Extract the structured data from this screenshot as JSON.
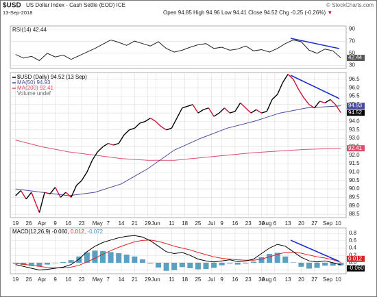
{
  "header": {
    "symbol": "$USD",
    "name": "US Dollar Index - Cash Settle (EOD) ICE",
    "date": "13-Sep-2018",
    "quote": [
      "Open 94.85",
      "High 94.96",
      "Low 94.41",
      "Close 94.52",
      "Chg -0.25 (-0.26%)",
      "▼"
    ],
    "credit": "© StockCharts.com"
  },
  "chart_data": [
    {
      "type": "line",
      "title": "RSI(14) 42.44",
      "xlim": [
        -2,
        125
      ],
      "ylim": [
        25,
        95
      ],
      "yticks": [
        30,
        50,
        70,
        90
      ],
      "grid": true,
      "series": [
        {
          "color": "#222222",
          "x": [
            0,
            3,
            6,
            9,
            12,
            15,
            18,
            21,
            24,
            27,
            30,
            33,
            36,
            39,
            42,
            45,
            48,
            51,
            54,
            57,
            60,
            63,
            66,
            69,
            72,
            75,
            78,
            81,
            84,
            87,
            90,
            93,
            96,
            99,
            102,
            105,
            108,
            111,
            114,
            117,
            120,
            123
          ],
          "values": [
            48,
            42,
            45,
            38,
            50,
            44,
            47,
            40,
            46,
            52,
            58,
            65,
            72,
            68,
            63,
            70,
            66,
            62,
            69,
            58,
            52,
            55,
            60,
            64,
            66,
            58,
            60,
            55,
            57,
            62,
            54,
            56,
            52,
            58,
            66,
            72,
            69,
            55,
            50,
            57,
            54,
            42.44
          ]
        }
      ]
    },
    {
      "type": "line",
      "xlim": [
        -2,
        125
      ],
      "ylim": [
        88.3,
        96.9
      ],
      "yticks": [
        88.5,
        {
          "value": 89,
          "label": "89.0"
        },
        89.5,
        {
          "value": 90,
          "label": "90.0"
        },
        90.5,
        {
          "value": 91,
          "label": "91.0"
        },
        91.5,
        {
          "value": 92,
          "label": "92.0"
        },
        92.5,
        {
          "value": 93,
          "label": "93.0"
        },
        93.5,
        {
          "value": 94,
          "label": "94.0"
        },
        94.5,
        {
          "value": 95,
          "label": "95.0"
        },
        95.5,
        {
          "value": 96,
          "label": "96.0"
        },
        96.5
      ],
      "xticks": [
        {
          "value": 0,
          "label": "19"
        },
        {
          "value": 5,
          "label": "26"
        },
        {
          "value": 10,
          "label": "Apr"
        },
        {
          "value": 15,
          "label": "9"
        },
        {
          "value": 20,
          "label": "16"
        },
        {
          "value": 25,
          "label": "23"
        },
        {
          "value": 31,
          "label": "May"
        },
        {
          "value": 35,
          "label": "7"
        },
        {
          "value": 40,
          "label": "14"
        },
        {
          "value": 45,
          "label": "21"
        },
        {
          "value": 50,
          "label": "29"
        },
        {
          "value": 53,
          "label": "Jun"
        },
        {
          "value": 59,
          "label": "11"
        },
        {
          "value": 64,
          "label": "18"
        },
        {
          "value": 69,
          "label": "25"
        },
        {
          "value": 74,
          "label": "Jul"
        },
        {
          "value": 78,
          "label": "9"
        },
        {
          "value": 83,
          "label": "16"
        },
        {
          "value": 88,
          "label": "23"
        },
        {
          "value": 93,
          "label": "30"
        },
        {
          "value": 95,
          "label": "Aug"
        },
        {
          "value": 98,
          "label": "6"
        },
        {
          "value": 103,
          "label": "13"
        },
        {
          "value": 108,
          "label": "20"
        },
        {
          "value": 113,
          "label": "27"
        },
        {
          "value": 118,
          "label": "Sep"
        },
        {
          "value": 122,
          "label": "10"
        }
      ],
      "grid": true,
      "extra_legend": "Volume undef",
      "series": [
        {
          "name": "$USD (Daily) 94.52 (13 Sep)",
          "color": "#000000",
          "down_color": "#cc1133",
          "x": [
            0,
            2,
            4,
            6,
            8,
            9,
            11,
            13,
            15,
            17,
            19,
            21,
            23,
            25,
            27,
            29,
            31,
            33,
            35,
            37,
            39,
            41,
            43,
            45,
            47,
            49,
            51,
            53,
            55,
            57,
            59,
            61,
            63,
            65,
            67,
            69,
            71,
            73,
            75,
            77,
            79,
            81,
            83,
            85,
            87,
            89,
            91,
            93,
            95,
            97,
            99,
            101,
            103,
            105,
            107,
            109,
            111,
            113,
            115,
            117,
            119,
            121,
            123
          ],
          "values": [
            89.6,
            89.9,
            89.4,
            89.8,
            89.0,
            88.6,
            89.8,
            89.7,
            90.1,
            89.5,
            89.8,
            89.5,
            90.2,
            90.5,
            91.0,
            91.7,
            92.2,
            92.5,
            92.7,
            92.6,
            92.7,
            93.2,
            93.5,
            93.6,
            93.9,
            94.0,
            94.2,
            94.0,
            93.7,
            93.5,
            93.6,
            94.2,
            94.8,
            94.9,
            95.0,
            94.5,
            94.7,
            94.8,
            94.3,
            94.5,
            94.8,
            94.5,
            94.6,
            95.1,
            94.8,
            94.5,
            94.7,
            94.5,
            94.6,
            95.3,
            95.6,
            96.3,
            96.8,
            96.5,
            95.9,
            95.4,
            95.0,
            94.8,
            95.2,
            95.1,
            95.3,
            95.0,
            94.52
          ]
        },
        {
          "name": "MA(50) 94.93",
          "color": "#4a4a9a",
          "x": [
            0,
            10,
            20,
            30,
            40,
            50,
            60,
            70,
            80,
            90,
            100,
            110,
            123
          ],
          "values": [
            90.0,
            89.8,
            89.6,
            89.8,
            90.3,
            91.2,
            92.3,
            93.0,
            93.6,
            94.0,
            94.5,
            94.8,
            94.93
          ]
        },
        {
          "name": "MA(200) 92.41",
          "color": "#d9506a",
          "x": [
            0,
            10,
            20,
            30,
            40,
            50,
            60,
            70,
            80,
            90,
            100,
            110,
            123
          ],
          "values": [
            92.9,
            92.5,
            92.2,
            92.0,
            91.8,
            91.7,
            91.7,
            91.85,
            92.0,
            92.15,
            92.25,
            92.35,
            92.41
          ]
        }
      ]
    },
    {
      "type": "line",
      "xlim": [
        -2,
        125
      ],
      "ylim": [
        -0.3,
        0.95
      ],
      "yticks": [
        0.8,
        0.6,
        0.4,
        0.2,
        {
          "value": 0,
          "label": "0.0"
        },
        -0.2
      ],
      "xticks": [
        {
          "value": 0,
          "label": "19"
        },
        {
          "value": 5,
          "label": "26"
        },
        {
          "value": 10,
          "label": "Apr"
        },
        {
          "value": 15,
          "label": "9"
        },
        {
          "value": 20,
          "label": "16"
        },
        {
          "value": 25,
          "label": "23"
        },
        {
          "value": 31,
          "label": "May"
        },
        {
          "value": 35,
          "label": "7"
        },
        {
          "value": 40,
          "label": "14"
        },
        {
          "value": 45,
          "label": "21"
        },
        {
          "value": 50,
          "label": "29"
        },
        {
          "value": 53,
          "label": "Jun"
        },
        {
          "value": 59,
          "label": "11"
        },
        {
          "value": 64,
          "label": "18"
        },
        {
          "value": 69,
          "label": "25"
        },
        {
          "value": 74,
          "label": "Jul"
        },
        {
          "value": 78,
          "label": "9"
        },
        {
          "value": 83,
          "label": "16"
        },
        {
          "value": 88,
          "label": "23"
        },
        {
          "value": 93,
          "label": "30"
        },
        {
          "value": 95,
          "label": "Aug"
        },
        {
          "value": 98,
          "label": "6"
        },
        {
          "value": 103,
          "label": "13"
        },
        {
          "value": 108,
          "label": "20"
        },
        {
          "value": 113,
          "label": "27"
        },
        {
          "value": 118,
          "label": "Sep"
        },
        {
          "value": 122,
          "label": "10"
        }
      ],
      "grid": true,
      "legend": [
        "MACD(12,26,9) -0.060,",
        "0.012,",
        "-0.072"
      ],
      "tags": [
        "-0.060",
        "0.012"
      ],
      "series": [
        {
          "color": "#000000",
          "x": [
            0,
            3,
            6,
            9,
            12,
            15,
            18,
            21,
            24,
            27,
            30,
            33,
            36,
            39,
            42,
            45,
            48,
            51,
            54,
            57,
            60,
            63,
            66,
            69,
            72,
            75,
            78,
            81,
            84,
            87,
            90,
            93,
            96,
            99,
            102,
            105,
            108,
            111,
            114,
            117,
            120,
            123
          ],
          "values": [
            -0.05,
            -0.1,
            -0.15,
            -0.2,
            -0.18,
            -0.15,
            -0.12,
            -0.05,
            0.1,
            0.3,
            0.45,
            0.55,
            0.62,
            0.68,
            0.72,
            0.74,
            0.7,
            0.6,
            0.45,
            0.3,
            0.25,
            0.28,
            0.2,
            0.1,
            0.05,
            0.02,
            0.05,
            0.08,
            0.03,
            0.05,
            0.1,
            0.25,
            0.4,
            0.5,
            0.45,
            0.3,
            0.15,
            0.05,
            0.02,
            0.05,
            0.0,
            -0.06
          ]
        },
        {
          "color": "#dd2222",
          "x": [
            0,
            3,
            6,
            9,
            12,
            15,
            18,
            21,
            24,
            27,
            30,
            33,
            36,
            39,
            42,
            45,
            48,
            51,
            54,
            57,
            60,
            63,
            66,
            69,
            72,
            75,
            78,
            81,
            84,
            87,
            90,
            93,
            96,
            99,
            102,
            105,
            108,
            111,
            114,
            117,
            120,
            123
          ],
          "values": [
            -0.02,
            -0.04,
            -0.07,
            -0.1,
            -0.13,
            -0.14,
            -0.14,
            -0.12,
            -0.07,
            0.02,
            0.12,
            0.23,
            0.33,
            0.42,
            0.5,
            0.57,
            0.61,
            0.62,
            0.58,
            0.52,
            0.45,
            0.4,
            0.35,
            0.28,
            0.22,
            0.16,
            0.12,
            0.1,
            0.08,
            0.07,
            0.07,
            0.1,
            0.16,
            0.23,
            0.28,
            0.29,
            0.26,
            0.21,
            0.16,
            0.13,
            0.08,
            0.012
          ]
        },
        {
          "color": "#3d8fb8",
          "style": "bar",
          "x": [
            0,
            3,
            6,
            9,
            12,
            15,
            18,
            21,
            24,
            27,
            30,
            33,
            36,
            39,
            42,
            45,
            48,
            51,
            54,
            57,
            60,
            63,
            66,
            69,
            72,
            75,
            78,
            81,
            84,
            87,
            90,
            93,
            96,
            99,
            102,
            105,
            108,
            111,
            114,
            117,
            120,
            123
          ],
          "values": [
            -0.03,
            -0.06,
            -0.08,
            -0.1,
            -0.05,
            -0.01,
            0.02,
            0.07,
            0.17,
            0.28,
            0.33,
            0.32,
            0.29,
            0.26,
            0.22,
            0.17,
            0.09,
            -0.02,
            -0.13,
            -0.22,
            -0.2,
            -0.12,
            -0.15,
            -0.18,
            -0.17,
            -0.14,
            -0.07,
            -0.02,
            -0.05,
            -0.02,
            0.03,
            0.15,
            0.24,
            0.27,
            0.17,
            0.01,
            -0.11,
            -0.16,
            -0.14,
            -0.08,
            -0.08,
            -0.072
          ]
        }
      ]
    }
  ]
}
